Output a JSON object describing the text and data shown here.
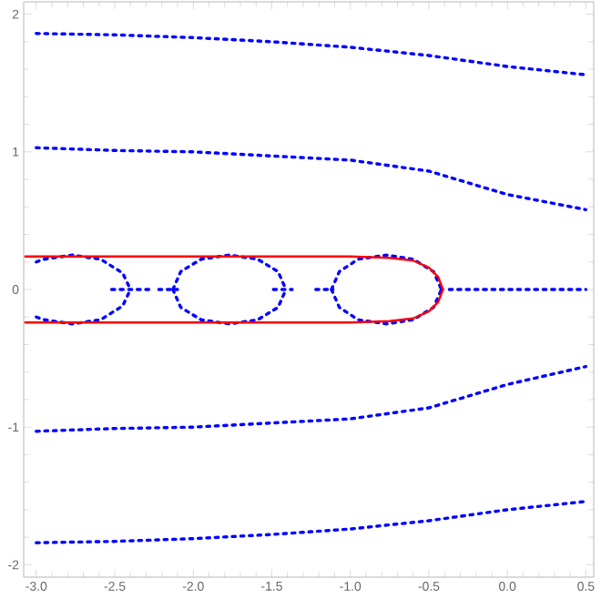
{
  "chart_data": {
    "type": "line",
    "xlim": [
      -3.08,
      0.55
    ],
    "ylim": [
      -2.09,
      2.09
    ],
    "xticks": [
      {
        "value": -3,
        "label": "-3.0"
      },
      {
        "value": -2.5,
        "label": "-2.5"
      },
      {
        "value": -2,
        "label": "-2.0"
      },
      {
        "value": -1.5,
        "label": "-1.5"
      },
      {
        "value": -1,
        "label": "-1.0"
      },
      {
        "value": -0.5,
        "label": "-0.5"
      },
      {
        "value": 0,
        "label": "0.0"
      },
      {
        "value": 0.5,
        "label": "0.5"
      }
    ],
    "yticks": [
      -2,
      -1,
      0,
      1,
      2
    ],
    "grid": false,
    "series": [
      {
        "color": "#0000ff",
        "line_style": "dotted",
        "x": [
          -3,
          -2.5,
          -2,
          -1.5,
          -1,
          -0.5,
          0,
          0.5
        ],
        "values": [
          1.86,
          1.85,
          1.83,
          1.8,
          1.76,
          1.7,
          1.62,
          1.56
        ]
      },
      {
        "color": "#0000ff",
        "line_style": "dotted",
        "x": [
          -3,
          -2.5,
          -2,
          -1.5,
          -1,
          -0.5,
          0,
          0.5
        ],
        "values": [
          1.03,
          1.01,
          1.0,
          0.97,
          0.94,
          0.86,
          0.69,
          0.58
        ]
      },
      {
        "color": "#0000ff",
        "line_style": "dotted",
        "x": [
          -3,
          -2.5,
          -2,
          -1.5,
          -1,
          -0.5,
          0,
          0.5
        ],
        "values": [
          -1.03,
          -1.01,
          -1.0,
          -0.97,
          -0.94,
          -0.86,
          -0.69,
          -0.56
        ]
      },
      {
        "color": "#0000ff",
        "line_style": "dotted",
        "x": [
          -3,
          -2.5,
          -2,
          -1.5,
          -1,
          -0.5,
          0,
          0.5
        ],
        "values": [
          -1.84,
          -1.83,
          -1.81,
          -1.78,
          -1.74,
          -1.68,
          -1.6,
          -1.54
        ]
      },
      {
        "color": "#0000ff",
        "line_style": "dotted",
        "x": [
          -2.52,
          -2.28,
          -2.25,
          -2.22,
          -2.1,
          -2.0,
          -1.49,
          -1.37,
          -1.3,
          -1.22,
          -1.11,
          -1.0,
          -0.37,
          0.5
        ],
        "values": [
          0,
          0,
          null,
          0,
          0,
          null,
          0,
          0,
          null,
          0,
          0,
          null,
          0,
          0
        ]
      },
      {
        "color": "#0000ff",
        "line_style": "dotted",
        "x": [
          -3,
          -2.95,
          -2.77,
          -2.59,
          -2.45,
          -2.4
        ],
        "values": [
          0.2,
          0.22,
          0.25,
          0.22,
          0.12,
          0
        ]
      },
      {
        "color": "#0000ff",
        "line_style": "dotted",
        "x": [
          -3,
          -2.95,
          -2.77,
          -2.59,
          -2.45,
          -2.4
        ],
        "values": [
          -0.2,
          -0.22,
          -0.25,
          -0.22,
          -0.12,
          0
        ]
      },
      {
        "color": "#0000ff",
        "line_style": "dotted",
        "x": [
          -2.13,
          -2.08,
          -1.95,
          -1.77,
          -1.59,
          -1.46,
          -1.41
        ],
        "values": [
          0,
          0.13,
          0.22,
          0.25,
          0.22,
          0.13,
          0
        ]
      },
      {
        "color": "#0000ff",
        "line_style": "dotted",
        "x": [
          -2.13,
          -2.08,
          -1.95,
          -1.77,
          -1.59,
          -1.46,
          -1.41
        ],
        "values": [
          0,
          -0.13,
          -0.22,
          -0.25,
          -0.22,
          -0.13,
          0
        ]
      },
      {
        "color": "#0000ff",
        "line_style": "dotted",
        "x": [
          -1.12,
          -1.07,
          -0.95,
          -0.77,
          -0.6,
          -0.47,
          -0.42
        ],
        "values": [
          0,
          0.13,
          0.22,
          0.25,
          0.22,
          0.13,
          0
        ]
      },
      {
        "color": "#0000ff",
        "line_style": "dotted",
        "x": [
          -1.12,
          -1.07,
          -0.95,
          -0.77,
          -0.6,
          -0.47,
          -0.42
        ],
        "values": [
          0,
          -0.13,
          -0.22,
          -0.25,
          -0.22,
          -0.13,
          0
        ]
      },
      {
        "color": "#ff0000",
        "line_style": "solid",
        "x": [
          -3.07,
          -2,
          -1,
          -0.75,
          -0.6,
          -0.5,
          -0.44,
          -0.41
        ],
        "values": [
          0.24,
          0.24,
          0.24,
          0.23,
          0.21,
          0.16,
          0.09,
          0
        ]
      },
      {
        "color": "#ff0000",
        "line_style": "solid",
        "x": [
          -3.07,
          -2,
          -1,
          -0.75,
          -0.6,
          -0.5,
          -0.44,
          -0.41
        ],
        "values": [
          -0.24,
          -0.24,
          -0.24,
          -0.23,
          -0.21,
          -0.16,
          -0.09,
          0
        ]
      }
    ]
  }
}
